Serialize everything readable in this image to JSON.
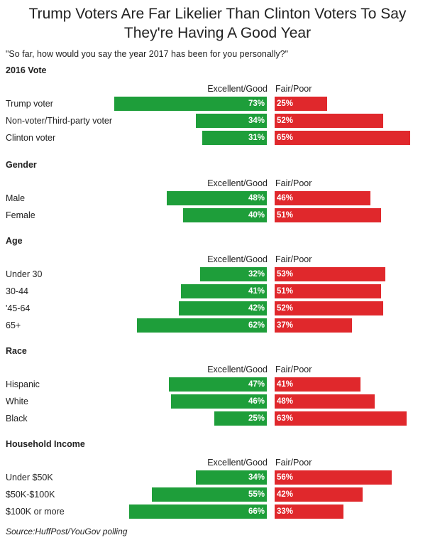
{
  "title_line1": "Trump Voters Are Far Likelier Than Clinton Voters To Say",
  "title_line2": "They're Having A Good Year",
  "subtitle": "\"So far, how would you say the year 2017 has been for you personally?\"",
  "source": "Source:HuffPost/YouGov polling",
  "colors": {
    "positive": "#1e9e3a",
    "negative": "#e0282c"
  },
  "chart_data": {
    "type": "bar",
    "orientation": "diverging-horizontal",
    "series_names": [
      "Excellent/Good",
      "Fair/Poor"
    ],
    "groups": [
      {
        "heading": "2016 Vote",
        "pos_label": "Excellent/Good",
        "neg_label": "Fair/Poor",
        "rows": [
          {
            "label": "Trump voter",
            "pos": 73,
            "neg": 25
          },
          {
            "label": "Non-voter/Third-party voter",
            "pos": 34,
            "neg": 52
          },
          {
            "label": "Clinton voter",
            "pos": 31,
            "neg": 65
          }
        ]
      },
      {
        "heading": "Gender",
        "pos_label": "Excellent/Good",
        "neg_label": "Fair/Poor",
        "rows": [
          {
            "label": "Male",
            "pos": 48,
            "neg": 46
          },
          {
            "label": "Female",
            "pos": 40,
            "neg": 51
          }
        ]
      },
      {
        "heading": "Age",
        "pos_label": "Excellent/Good",
        "neg_label": "Fair/Poor",
        "rows": [
          {
            "label": "Under 30",
            "pos": 32,
            "neg": 53
          },
          {
            "label": "30-44",
            "pos": 41,
            "neg": 51
          },
          {
            "label": "'45-64",
            "pos": 42,
            "neg": 52
          },
          {
            "label": "65+",
            "pos": 62,
            "neg": 37
          }
        ]
      },
      {
        "heading": "Race",
        "pos_label": "Excellent/Good",
        "neg_label": "Fair/Poor",
        "rows": [
          {
            "label": "Hispanic",
            "pos": 47,
            "neg": 41
          },
          {
            "label": "White",
            "pos": 46,
            "neg": 48
          },
          {
            "label": "Black",
            "pos": 25,
            "neg": 63
          }
        ]
      },
      {
        "heading": "Household Income",
        "pos_label": "Excellent/Good",
        "neg_label": "Fair/Poor",
        "rows": [
          {
            "label": "Under $50K",
            "pos": 34,
            "neg": 56
          },
          {
            "label": "$50K-$100K",
            "pos": 55,
            "neg": 42
          },
          {
            "label": "$100K or more",
            "pos": 66,
            "neg": 33
          }
        ]
      }
    ]
  }
}
